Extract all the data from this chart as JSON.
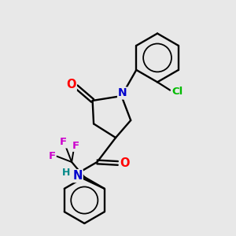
{
  "background_color": "#e8e8e8",
  "bond_color": "#000000",
  "atom_colors": {
    "O": "#ff0000",
    "N": "#0000cc",
    "Cl": "#00bb00",
    "F": "#cc00cc",
    "H": "#008888",
    "C": "#000000"
  },
  "figsize": [
    3.0,
    3.0
  ],
  "dpi": 100
}
